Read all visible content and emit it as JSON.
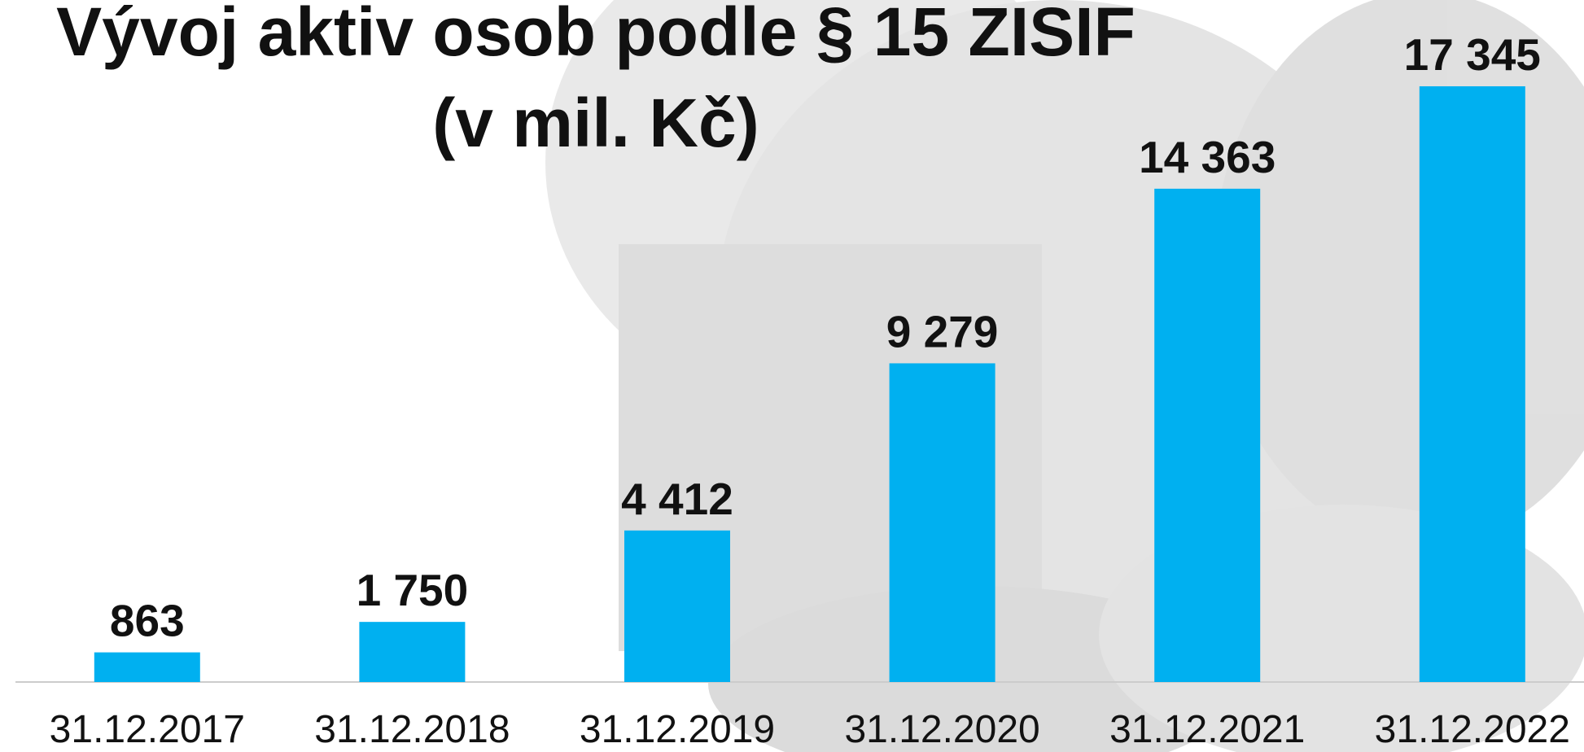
{
  "chart_data": {
    "type": "bar",
    "title": "Vývoj aktiv osob podle § 15 ZISIF",
    "subtitle": "(v mil. Kč)",
    "categories": [
      "31.12.2017",
      "31.12.2018",
      "31.12.2019",
      "31.12.2020",
      "31.12.2021",
      "31.12.2022"
    ],
    "values": [
      863,
      1750,
      4412,
      9279,
      14363,
      17345
    ],
    "value_labels": [
      "863",
      "1 750",
      "4 412",
      "9 279",
      "14 363",
      "17 345"
    ],
    "color": "#00b0f0",
    "ylim": [
      0,
      20000
    ]
  }
}
